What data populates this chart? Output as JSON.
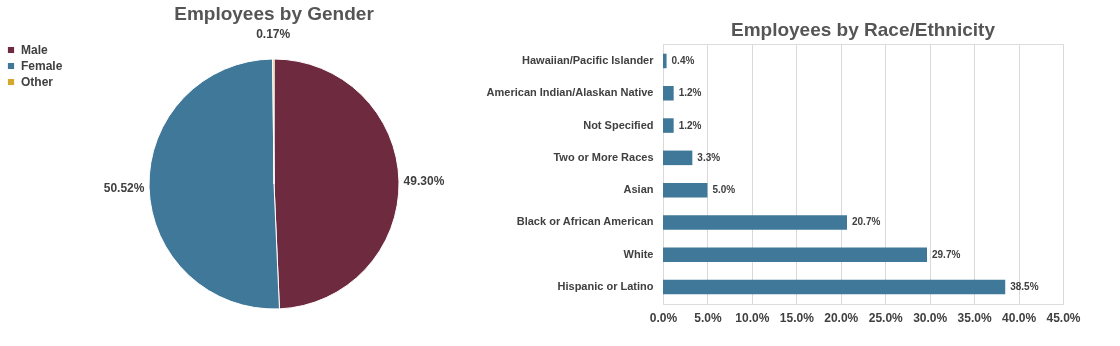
{
  "chart_data": [
    {
      "type": "pie",
      "title": "Employees by Gender",
      "categories": [
        "Male",
        "Female",
        "Other"
      ],
      "values": [
        49.3,
        50.52,
        0.17
      ],
      "colors": [
        "#6e2a3f",
        "#3f7898",
        "#d4a82a"
      ],
      "value_labels": [
        "49.30%",
        "50.52%",
        "0.17%"
      ],
      "legend": "left"
    },
    {
      "type": "bar",
      "orientation": "horizontal",
      "title": "Employees by Race/Ethnicity",
      "categories": [
        "Hawaiian/Pacific Islander",
        "American Indian/Alaskan Native",
        "Not Specified",
        "Two or More Races",
        "Asian",
        "Black or African American",
        "White",
        "Hispanic or Latino"
      ],
      "values": [
        0.4,
        1.2,
        1.2,
        3.3,
        5.0,
        20.7,
        29.7,
        38.5
      ],
      "color": "#3f7898",
      "value_labels": [
        "0.4%",
        "1.2%",
        "1.2%",
        "3.3%",
        "5.0%",
        "20.7%",
        "29.7%",
        "38.5%"
      ],
      "xlim": [
        0,
        45
      ],
      "xticks": [
        {
          "value": 0,
          "label": "0.0%"
        },
        {
          "value": 5,
          "label": "5.0%"
        },
        {
          "value": 10,
          "label": "10.0%"
        },
        {
          "value": 15,
          "label": "15.0%"
        },
        {
          "value": 20,
          "label": "20.0%"
        },
        {
          "value": 25,
          "label": "25.0%"
        },
        {
          "value": 30,
          "label": "30.0%"
        },
        {
          "value": 35,
          "label": "35.0%"
        },
        {
          "value": 40,
          "label": "40.0%"
        },
        {
          "value": 45,
          "label": "45.0%"
        }
      ],
      "grid": "x"
    }
  ]
}
